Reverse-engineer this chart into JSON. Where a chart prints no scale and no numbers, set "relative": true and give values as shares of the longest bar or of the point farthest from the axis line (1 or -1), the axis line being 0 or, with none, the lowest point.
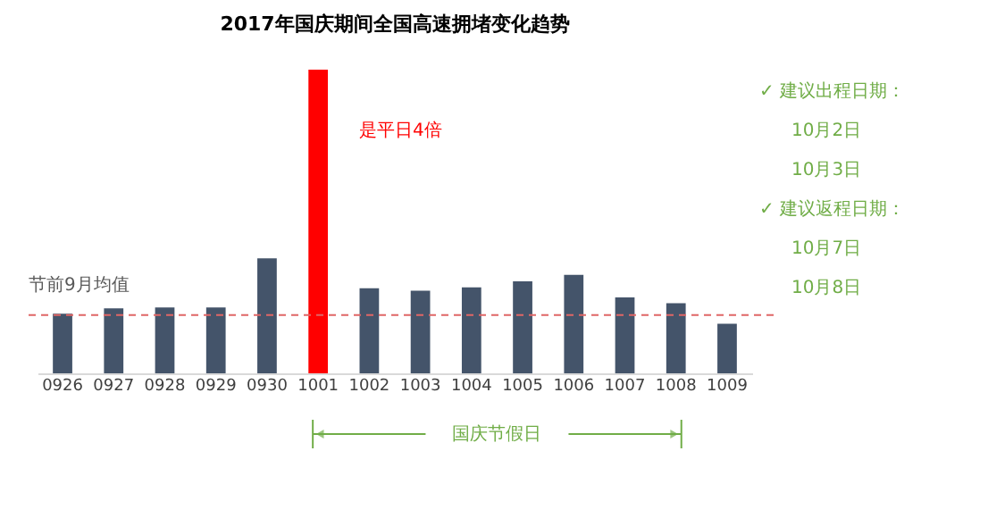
{
  "chart_data": {
    "type": "bar",
    "title": "2017年国庆期间全国高速拥堵变化趋势",
    "relative": true,
    "categories": [
      "0926",
      "0927",
      "0928",
      "0929",
      "0930",
      "1001",
      "1002",
      "1003",
      "1004",
      "1005",
      "1006",
      "1007",
      "1008",
      "1009"
    ],
    "values": [
      0.196,
      0.214,
      0.217,
      0.217,
      0.379,
      1,
      0.28,
      0.272,
      0.283,
      0.303,
      0.324,
      0.25,
      0.231,
      0.163
    ],
    "colors": [
      "#44546a",
      "#44546a",
      "#44546a",
      "#44546a",
      "#44546a",
      "#ff0000",
      "#44546a",
      "#44546a",
      "#44546a",
      "#44546a",
      "#44546a",
      "#44546a",
      "#44546a",
      "#44546a"
    ],
    "ref_lines": [
      {
        "axis": "y",
        "value": 0.192,
        "label": "节前9月均值",
        "color": "#e06666",
        "line_style": "dashed"
      }
    ],
    "annotations": [
      "是平日4倍",
      "✓ 建议出程日期：",
      "10月2日",
      "10月3日",
      "✓ 建议返程日期：",
      "10月7日",
      "10月8日",
      "国庆节假日"
    ],
    "grid": false
  }
}
